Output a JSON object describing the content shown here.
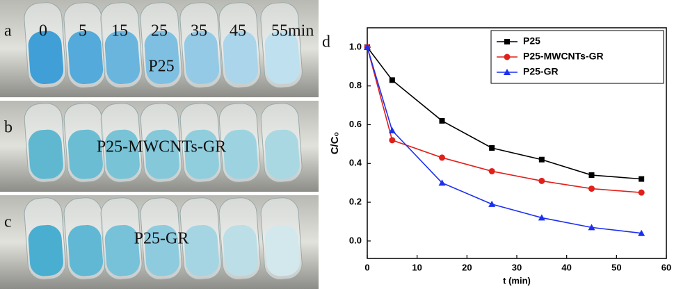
{
  "photos": {
    "times": [
      0,
      5,
      15,
      25,
      35,
      45,
      55
    ],
    "time_unit": "min",
    "panels": [
      {
        "label": "a",
        "sample": "P25"
      },
      {
        "label": "b",
        "sample": "P25-MWCNTs-GR"
      },
      {
        "label": "c",
        "sample": "P25-GR"
      }
    ]
  },
  "chart_data": {
    "type": "line",
    "panel_label": "d",
    "x_label": "t (min)",
    "y_label": "C/C₀",
    "x": [
      0,
      5,
      15,
      25,
      35,
      45,
      55
    ],
    "series": [
      {
        "name": "P25",
        "color": "#000000",
        "marker": "square",
        "values": [
          1.0,
          0.83,
          0.62,
          0.48,
          0.42,
          0.34,
          0.32
        ]
      },
      {
        "name": "P25-MWCNTs-GR",
        "color": "#e0201b",
        "marker": "circle",
        "values": [
          1.0,
          0.52,
          0.43,
          0.36,
          0.31,
          0.27,
          0.25
        ]
      },
      {
        "name": "P25-GR",
        "color": "#1c2ff0",
        "marker": "triangle",
        "values": [
          1.0,
          0.57,
          0.3,
          0.19,
          0.12,
          0.07,
          0.04
        ]
      }
    ],
    "xlim": [
      0,
      60
    ],
    "xticks": [
      0,
      10,
      20,
      30,
      40,
      50,
      60
    ],
    "ylim": [
      -0.09,
      1.1
    ],
    "yticks": [
      {
        "value": 0,
        "label": "0.0"
      },
      0.2,
      0.4,
      0.6,
      0.8,
      {
        "value": 1,
        "label": "1.0"
      }
    ],
    "legend": "upper right"
  }
}
